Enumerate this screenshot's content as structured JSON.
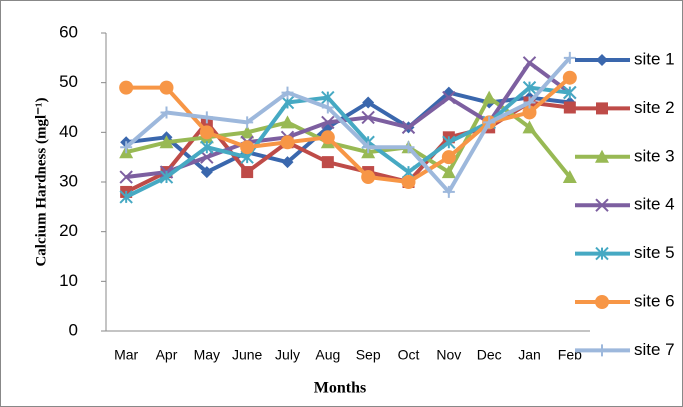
{
  "chart_data": {
    "type": "line",
    "x_label": "Months",
    "y_label": "Calcium Hardness (mgl⁻¹)",
    "categories": [
      "Mar",
      "Apr",
      "May",
      "June",
      "July",
      "Aug",
      "Sep",
      "Oct",
      "Nov",
      "Dec",
      "Jan",
      "Feb"
    ],
    "ylim": [
      0,
      60
    ],
    "yticks": [
      0,
      10,
      20,
      30,
      40,
      50,
      60
    ],
    "grid": false,
    "legend": "right",
    "series": [
      {
        "name": "site 1",
        "color": "#3a67ad",
        "marker": "diamond",
        "values": [
          38,
          39,
          32,
          36,
          34,
          41,
          46,
          41,
          48,
          46,
          47,
          46
        ]
      },
      {
        "name": "site 2",
        "color": "#be4b48",
        "marker": "square",
        "values": [
          28,
          32,
          42,
          32,
          38,
          34,
          32,
          30,
          39,
          41,
          46,
          45
        ]
      },
      {
        "name": "site 3",
        "color": "#98b954",
        "marker": "triangle",
        "values": [
          36,
          38,
          39,
          40,
          42,
          38,
          36,
          37,
          32,
          47,
          41,
          31
        ]
      },
      {
        "name": "site 4",
        "color": "#7d5fa0",
        "marker": "x",
        "values": [
          31,
          32,
          35,
          38,
          39,
          42,
          43,
          41,
          47,
          42,
          54,
          48
        ]
      },
      {
        "name": "site 5",
        "color": "#46a9c3",
        "marker": "star",
        "values": [
          27,
          31,
          37,
          35,
          46,
          47,
          38,
          32,
          38,
          42,
          49,
          48
        ]
      },
      {
        "name": "site 6",
        "color": "#f79646",
        "marker": "circle",
        "values": [
          49,
          49,
          40,
          37,
          38,
          39,
          31,
          30,
          35,
          42,
          44,
          51
        ]
      },
      {
        "name": "site 7",
        "color": "#9db8dc",
        "marker": "plus",
        "values": [
          37,
          44,
          43,
          42,
          48,
          45,
          37,
          37,
          28,
          42,
          46,
          55
        ]
      }
    ]
  }
}
